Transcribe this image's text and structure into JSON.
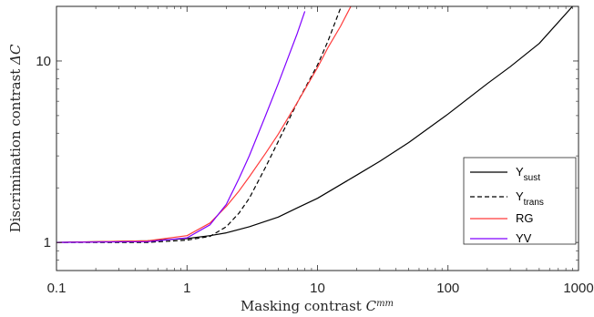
{
  "chart_data": {
    "type": "line",
    "title": "",
    "xlabel_text": "Masking contrast ",
    "xlabel_math": "C",
    "xlabel_sup": "mm",
    "ylabel_text": "Discrimination contrast ",
    "ylabel_math": "ΔC",
    "x_scale": "log",
    "y_scale": "log",
    "xlim": [
      0.1,
      1000
    ],
    "ylim": [
      0.7,
      20
    ],
    "xticks": [
      0.1,
      1,
      10,
      100,
      1000
    ],
    "xtick_labels": [
      "0.1",
      "1",
      "10",
      "100",
      "1000"
    ],
    "yticks": [
      1,
      10
    ],
    "ytick_labels": [
      "1",
      "10"
    ],
    "grid": false,
    "legend_position": "bottom-right",
    "series": [
      {
        "name_main": "Y",
        "name_sub": "sust",
        "color": "#000000",
        "dash": "solid",
        "x": [
          0.1,
          0.5,
          1,
          1.5,
          2,
          3,
          5,
          7,
          10,
          20,
          30,
          50,
          100,
          200,
          300,
          500,
          900
        ],
        "y": [
          1.0,
          1.02,
          1.05,
          1.09,
          1.13,
          1.22,
          1.38,
          1.55,
          1.75,
          2.35,
          2.8,
          3.55,
          5.1,
          7.5,
          9.3,
          12.5,
          20
        ]
      },
      {
        "name_main": "Y",
        "name_sub": "trans",
        "color": "#000000",
        "dash": "dashed",
        "x": [
          0.1,
          0.5,
          1,
          1.5,
          2,
          2.5,
          3,
          4,
          5,
          7,
          10,
          12,
          15
        ],
        "y": [
          1.0,
          1.0,
          1.03,
          1.08,
          1.22,
          1.45,
          1.75,
          2.6,
          3.6,
          5.9,
          9.5,
          12.8,
          19.5
        ]
      },
      {
        "name_main": "RG",
        "name_sub": "",
        "color": "#ff3b3b",
        "dash": "solid",
        "x": [
          0.1,
          0.5,
          1,
          1.5,
          2,
          2.5,
          3,
          4,
          5,
          7,
          10,
          12,
          15,
          18
        ],
        "y": [
          1.0,
          1.02,
          1.09,
          1.28,
          1.58,
          1.92,
          2.3,
          3.1,
          3.95,
          5.9,
          9.2,
          11.8,
          15.5,
          20
        ]
      },
      {
        "name_main": "YV",
        "name_sub": "",
        "color": "#8000ff",
        "dash": "solid",
        "x": [
          0.1,
          0.5,
          1,
          1.5,
          2,
          2.5,
          3,
          4,
          5,
          6,
          7,
          8
        ],
        "y": [
          1.0,
          1.01,
          1.06,
          1.25,
          1.62,
          2.25,
          3.0,
          5.0,
          7.5,
          10.6,
          14.2,
          18.8
        ]
      }
    ]
  }
}
